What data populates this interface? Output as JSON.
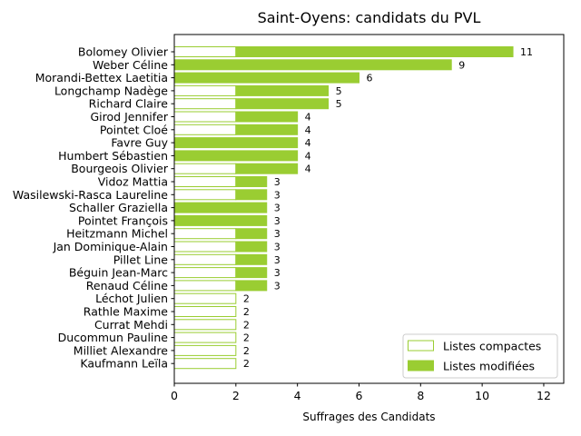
{
  "chart_data": {
    "type": "bar",
    "orientation": "horizontal",
    "stacked": true,
    "title": "Saint-Oyens: candidats du PVL",
    "xlabel": "Suffrages des Candidats",
    "ylabel": "",
    "xlim": [
      0,
      12.65
    ],
    "xticks": [
      0,
      2,
      4,
      6,
      8,
      10,
      12
    ],
    "grid": false,
    "legend_position": "lower-right",
    "color": "#9acd32",
    "categories": [
      "Bolomey Olivier",
      "Weber Céline",
      "Morandi-Bettex Laetitia",
      "Longchamp Nadège",
      "Richard Claire",
      "Girod Jennifer",
      "Pointet Cloé",
      "Favre Guy",
      "Humbert Sébastien",
      "Bourgeois Olivier",
      "Vidoz Mattia",
      "Wasilewski-Rasca Laureline",
      "Schaller Graziella",
      "Pointet François",
      "Heitzmann Michel",
      "Jan Dominique-Alain",
      "Pillet Line",
      "Béguin Jean-Marc",
      "Renaud Céline",
      "Léchot Julien",
      "Rathle Maxime",
      "Currat Mehdi",
      "Ducommun Pauline",
      "Milliet Alexandre",
      "Kaufmann Leïla"
    ],
    "series": [
      {
        "name": "Listes compactes",
        "style": "outline",
        "values": [
          2,
          0,
          0,
          2,
          2,
          2,
          2,
          0,
          0,
          2,
          2,
          2,
          0,
          0,
          2,
          2,
          2,
          2,
          2,
          2,
          2,
          2,
          2,
          2,
          2
        ]
      },
      {
        "name": "Listes modifiées",
        "style": "filled",
        "values": [
          9,
          9,
          6,
          3,
          3,
          2,
          2,
          4,
          4,
          2,
          1,
          1,
          3,
          3,
          1,
          1,
          1,
          1,
          1,
          0,
          0,
          0,
          0,
          0,
          0
        ]
      }
    ],
    "totals": [
      11,
      9,
      6,
      5,
      5,
      4,
      4,
      4,
      4,
      4,
      3,
      3,
      3,
      3,
      3,
      3,
      3,
      3,
      3,
      2,
      2,
      2,
      2,
      2,
      2
    ]
  }
}
